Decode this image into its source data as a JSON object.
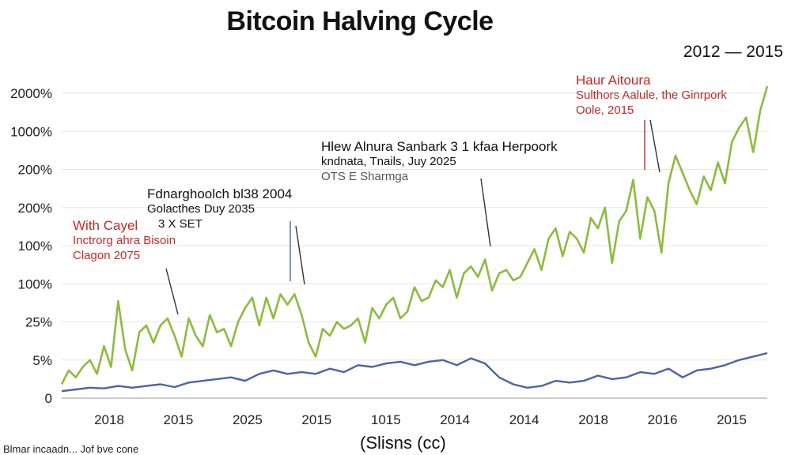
{
  "chart_data": {
    "type": "line",
    "title": "Bitcoin Halving Cycle",
    "subtitle": "2012 — 2015",
    "xlabel": "(Slisns (cc)",
    "ylabel": "",
    "y_tick_labels": [
      "0",
      "5%",
      "25%",
      "100%",
      "100%",
      "200%",
      "200%",
      "1000%",
      "2000%"
    ],
    "x_tick_labels": [
      "2018",
      "2015",
      "2025",
      "2015",
      "1015",
      "2014",
      "2014",
      "2018",
      "2016",
      "2015"
    ],
    "ylim": [
      0,
      8.8
    ],
    "xlim": [
      0,
      100
    ],
    "grid": "horizontal",
    "legend": "none",
    "series": [
      {
        "color": "#8dbb3f",
        "x": [
          0,
          1,
          2,
          3,
          4,
          5,
          6,
          7,
          8,
          9,
          10,
          11,
          12,
          13,
          14,
          15,
          16,
          17,
          18,
          19,
          20,
          21,
          22,
          23,
          24,
          25,
          26,
          27,
          28,
          29,
          30,
          31,
          32,
          33,
          34,
          35,
          36,
          37,
          38,
          39,
          40,
          41,
          42,
          43,
          44,
          45,
          46,
          47,
          48,
          49,
          50,
          51,
          52,
          53,
          54,
          55,
          56,
          57,
          58,
          59,
          60,
          61,
          62,
          63,
          64,
          65,
          66,
          67,
          68,
          69,
          70,
          71,
          72,
          73,
          74,
          75,
          76,
          77,
          78,
          79,
          80,
          81,
          82,
          83,
          84,
          85,
          86,
          87,
          88,
          89,
          90,
          91,
          92,
          93,
          94,
          95,
          96,
          97,
          98,
          99,
          100
        ],
        "values": [
          0.4,
          0.8,
          0.6,
          0.9,
          1.1,
          0.7,
          1.5,
          0.9,
          2.8,
          1.4,
          0.8,
          1.9,
          2.1,
          1.6,
          2.1,
          2.3,
          1.8,
          1.2,
          2.3,
          1.8,
          1.5,
          2.4,
          1.9,
          2.0,
          1.5,
          2.2,
          2.6,
          2.9,
          2.1,
          2.9,
          2.3,
          3.0,
          2.7,
          3.0,
          2.4,
          1.6,
          1.2,
          2.0,
          1.8,
          2.2,
          2.0,
          2.1,
          2.3,
          1.6,
          2.6,
          2.3,
          2.7,
          2.9,
          2.3,
          2.5,
          3.2,
          2.8,
          2.9,
          3.4,
          3.2,
          3.7,
          2.9,
          3.6,
          3.8,
          3.5,
          4.0,
          3.1,
          3.6,
          3.7,
          3.4,
          3.5,
          3.9,
          4.3,
          3.7,
          4.6,
          4.9,
          4.1,
          4.8,
          4.6,
          4.2,
          5.2,
          4.9,
          5.5,
          3.9,
          5.1,
          5.4,
          6.3,
          4.6,
          5.8,
          5.4,
          4.2,
          6.2,
          7.0,
          6.5,
          6.0,
          5.6,
          6.4,
          6.0,
          6.8,
          6.2,
          7.4,
          7.8,
          8.1,
          7.1,
          8.3,
          9.0
        ]
      },
      {
        "color": "#4a64a8",
        "x": [
          0,
          2,
          4,
          6,
          8,
          10,
          12,
          14,
          16,
          18,
          20,
          22,
          24,
          26,
          28,
          30,
          32,
          34,
          36,
          38,
          40,
          42,
          44,
          46,
          48,
          50,
          52,
          54,
          56,
          58,
          60,
          62,
          64,
          66,
          68,
          70,
          72,
          74,
          76,
          78,
          80,
          82,
          84,
          86,
          88,
          90,
          92,
          94,
          96,
          98,
          100
        ],
        "values": [
          0.2,
          0.25,
          0.3,
          0.28,
          0.35,
          0.3,
          0.35,
          0.4,
          0.32,
          0.45,
          0.5,
          0.55,
          0.6,
          0.5,
          0.7,
          0.8,
          0.7,
          0.75,
          0.7,
          0.85,
          0.75,
          0.95,
          0.9,
          1.0,
          1.05,
          0.95,
          1.05,
          1.1,
          0.95,
          1.15,
          1.0,
          0.6,
          0.4,
          0.3,
          0.35,
          0.5,
          0.45,
          0.5,
          0.65,
          0.55,
          0.6,
          0.75,
          0.7,
          0.85,
          0.6,
          0.8,
          0.85,
          0.95,
          1.1,
          1.2,
          1.3
        ]
      }
    ]
  },
  "annotations": [
    {
      "line1": "Haur Aitoura",
      "line2": "Sulthors Aalule, the Ginrpork",
      "line3": "Oole, 2015"
    },
    {
      "line1": "Hlew Alnura Sanbark 3 1 kfaa Herpoork",
      "line2": "kndnata, Tnails, Juy 2025",
      "line3": "OTS E Sharmga"
    },
    {
      "line1": "Fdnarghoolch  bl38     2004",
      "line2": "Golacthes Duy 2035",
      "line3": "3 X SET"
    },
    {
      "line1": "With Cayel",
      "line2": "Inctrorg ahra Bisoin",
      "line3": "Clagon 2075"
    }
  ],
  "footer": "Blmar incaadn... Jof bve cone"
}
